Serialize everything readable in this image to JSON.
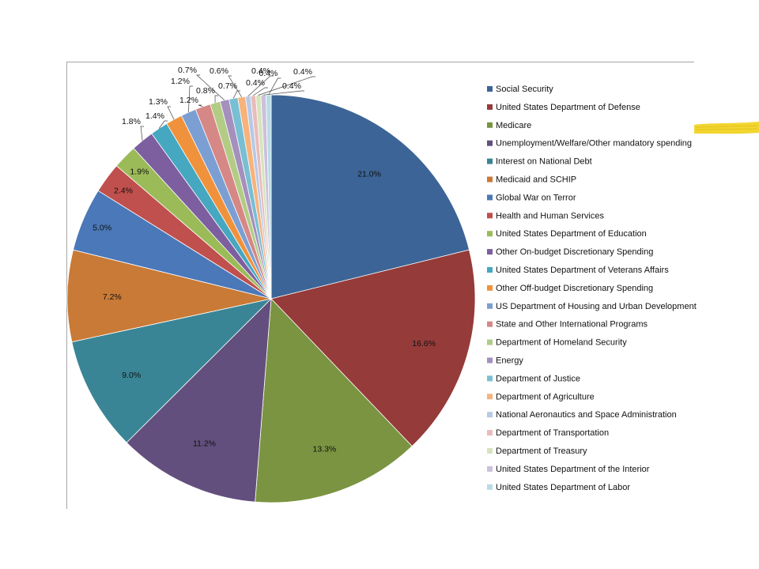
{
  "chart_data": {
    "type": "pie",
    "start_angle_deg": 0,
    "direction": "clockwise",
    "legend_position": "right",
    "slices": [
      {
        "label": "Social Security",
        "value": 21.0,
        "display": "21.0%",
        "color": "#3c6496"
      },
      {
        "label": "United States Department of Defense",
        "value": 16.6,
        "display": "16.6%",
        "color": "#953b39"
      },
      {
        "label": "Medicare",
        "value": 13.3,
        "display": "13.3%",
        "color": "#7a9441"
      },
      {
        "label": "Unemployment/Welfare/Other mandatory spending",
        "value": 11.2,
        "display": "11.2%",
        "color": "#634f7d"
      },
      {
        "label": "Interest on National Debt",
        "value": 9.0,
        "display": "9.0%",
        "color": "#3a8595"
      },
      {
        "label": "Medicaid and SCHIP",
        "value": 7.2,
        "display": "7.2%",
        "color": "#c87a36"
      },
      {
        "label": "Global War on Terror",
        "value": 5.0,
        "display": "5.0%",
        "color": "#4a78b8"
      },
      {
        "label": "Health and Human Services",
        "value": 2.4,
        "display": "2.4%",
        "color": "#c0504d"
      },
      {
        "label": "United States Department of Education",
        "value": 1.9,
        "display": "1.9%",
        "color": "#9bbb59"
      },
      {
        "label": "Other On-budget Discretionary Spending",
        "value": 1.8,
        "display": "1.8%",
        "color": "#7d5fa0"
      },
      {
        "label": "United States Department of Veterans Affairs",
        "value": 1.4,
        "display": "1.4%",
        "color": "#46a7c0"
      },
      {
        "label": "Other Off-budget Discretionary Spending",
        "value": 1.3,
        "display": "1.3%",
        "color": "#f0923c"
      },
      {
        "label": "US Department of Housing and Urban Development",
        "value": 1.2,
        "display": "1.2%",
        "color": "#7b9fd2"
      },
      {
        "label": "State and Other International Programs",
        "value": 1.2,
        "display": "1.2%",
        "color": "#d58886"
      },
      {
        "label": "Department of Homeland Security",
        "value": 0.8,
        "display": "0.8%",
        "color": "#b2cc86"
      },
      {
        "label": "Energy",
        "value": 0.7,
        "display": "0.7%",
        "color": "#a48fbd"
      },
      {
        "label": "Department of Justice",
        "value": 0.7,
        "display": "0.7%",
        "color": "#79bfd3"
      },
      {
        "label": "Department of Agriculture",
        "value": 0.6,
        "display": "0.6%",
        "color": "#f8b27c"
      },
      {
        "label": "National Aeronautics and Space Administration",
        "value": 0.4,
        "display": "0.4%",
        "color": "#b6c9e6"
      },
      {
        "label": "Department of Transportation",
        "value": 0.4,
        "display": "0.4%",
        "color": "#e8bcbb"
      },
      {
        "label": "Department of Treasury",
        "value": 0.4,
        "display": "0.4%",
        "color": "#d6e4bd"
      },
      {
        "label": "United States Department of the Interior",
        "value": 0.4,
        "display": "0.4%",
        "color": "#cbc0dc"
      },
      {
        "label": "United States Department of Labor",
        "value": 0.4,
        "display": "0.4%",
        "color": "#b9dbe6"
      }
    ]
  },
  "decoration": {
    "highlighter_color": "#f2d530"
  }
}
